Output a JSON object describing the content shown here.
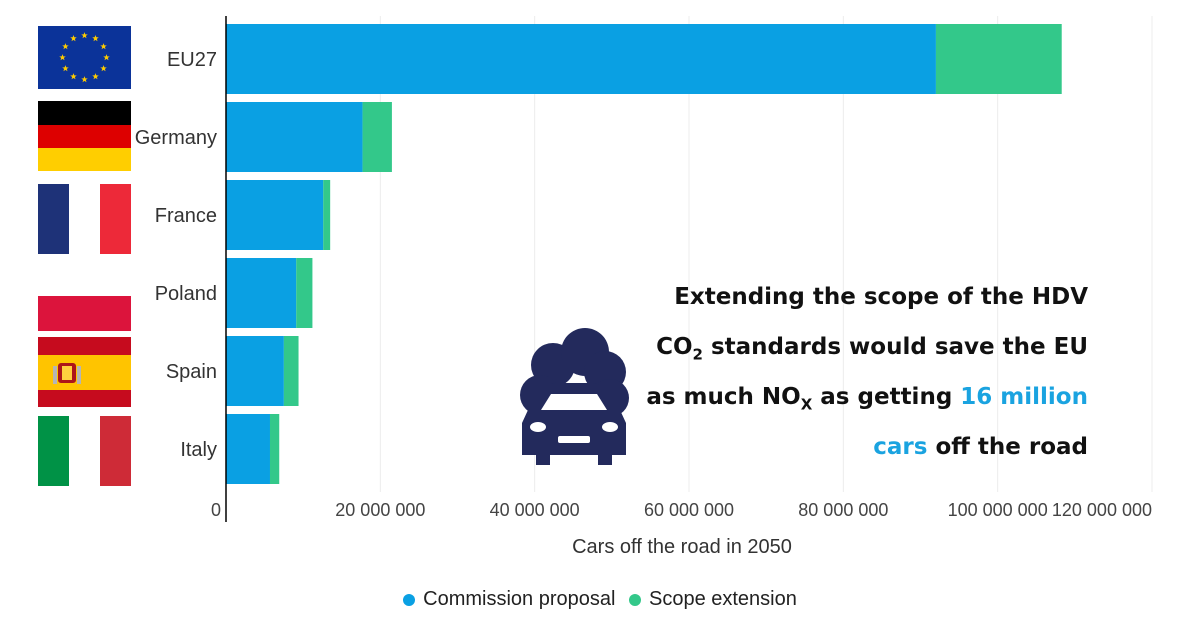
{
  "chart_data": {
    "type": "bar",
    "orientation": "horizontal",
    "stacked": true,
    "categories": [
      "EU27",
      "Germany",
      "France",
      "Poland",
      "Spain",
      "Italy"
    ],
    "series": [
      {
        "name": "Commission proposal",
        "color": "#0aa0e3",
        "values": [
          92000000,
          17700000,
          12600000,
          9100000,
          7500000,
          5700000
        ]
      },
      {
        "name": "Scope extension",
        "color": "#33c88a",
        "values": [
          16300000,
          3800000,
          900000,
          2100000,
          1900000,
          1200000
        ]
      }
    ],
    "xlabel": "Cars off the road in 2050",
    "xlim": [
      0,
      120000000
    ],
    "xticks": [
      0,
      20000000,
      40000000,
      60000000,
      80000000,
      100000000,
      120000000
    ],
    "xtick_labels": [
      "0",
      "20 000 000",
      "40 000 000",
      "60 000 000",
      "80 000 000",
      "100 000 000",
      "120 000 000"
    ],
    "grid": "vertical",
    "legend_position": "bottom-center",
    "flags": [
      "eu-flag",
      "germany-flag",
      "france-flag",
      "poland-flag",
      "spain-flag",
      "italy-flag"
    ]
  },
  "annotation": {
    "line1": "Extending the scope of the HDV",
    "line2_pre": "CO",
    "line2_sub": "2",
    "line2_post": " standards would save the EU",
    "line3_pre": "as much NO",
    "line3_sub": "X",
    "line3_mid": " as getting ",
    "line3_highlight": "16 million",
    "line4_highlight": "cars",
    "line4_post": " off the road",
    "icon": "polluting-car-icon"
  }
}
